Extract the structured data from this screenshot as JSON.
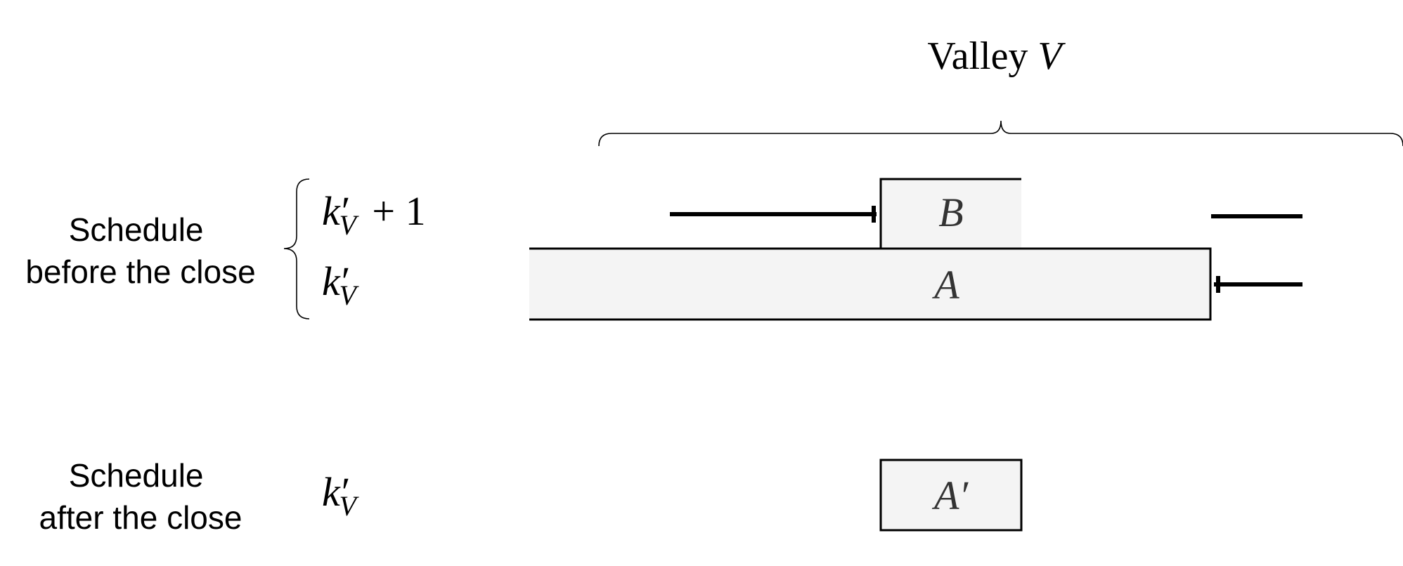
{
  "title": {
    "prefix": "Valley ",
    "symbol": "V"
  },
  "sections": {
    "before": {
      "line1": "Schedule",
      "line2": "before the close"
    },
    "after": {
      "line1": "Schedule",
      "line2": "after the close"
    }
  },
  "rows": {
    "upper": {
      "base": "k",
      "prime": "′",
      "sub": "V",
      "suffix": " + 1"
    },
    "lower": {
      "base": "k",
      "prime": "′",
      "sub": "V"
    },
    "after": {
      "base": "k",
      "prime": "′",
      "sub": "V"
    }
  },
  "boxes": {
    "a": "A",
    "b": "B",
    "a_prime": "A′"
  },
  "colors": {
    "box_fill": "#f4f4f4",
    "stroke": "#000000",
    "box_label": "#333333"
  }
}
